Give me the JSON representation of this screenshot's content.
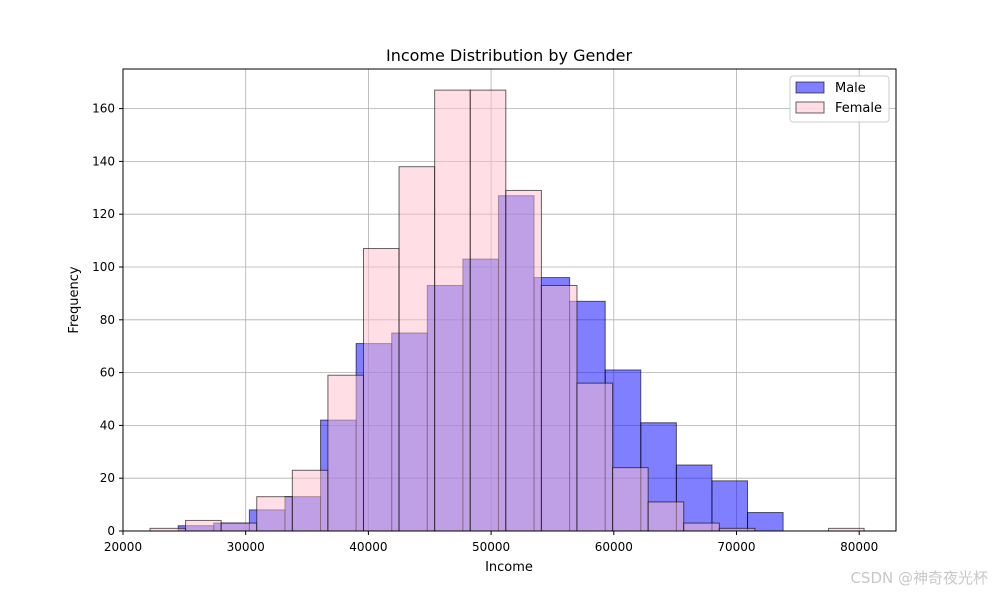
{
  "watermark": "CSDN @神奇夜光杯",
  "chart_data": {
    "type": "bar",
    "subtype": "overlapping-histogram",
    "title": "Income Distribution by Gender",
    "xlabel": "Income",
    "ylabel": "Frequency",
    "xlim": [
      20000,
      83000
    ],
    "ylim": [
      0,
      175
    ],
    "xticks": [
      20000,
      30000,
      40000,
      50000,
      60000,
      70000,
      80000
    ],
    "yticks": [
      0,
      20,
      40,
      60,
      80,
      100,
      120,
      140,
      160
    ],
    "grid": true,
    "legend_position": "top-right",
    "series": [
      {
        "name": "Male",
        "color": "#0000ff",
        "alpha": 0.5,
        "edgecolor": "#000000",
        "bins": [
          [
            24500,
            27400,
            2
          ],
          [
            27400,
            30300,
            3
          ],
          [
            30300,
            33200,
            8
          ],
          [
            33200,
            36100,
            13
          ],
          [
            36100,
            39000,
            42
          ],
          [
            39000,
            41900,
            71
          ],
          [
            41900,
            44800,
            75
          ],
          [
            44800,
            47700,
            93
          ],
          [
            47700,
            50600,
            103
          ],
          [
            50600,
            53500,
            127
          ],
          [
            53500,
            56400,
            96
          ],
          [
            56400,
            59300,
            87
          ],
          [
            59300,
            62200,
            61
          ],
          [
            62200,
            65100,
            41
          ],
          [
            65100,
            68000,
            25
          ],
          [
            68000,
            70900,
            19
          ],
          [
            70900,
            73800,
            7
          ]
        ]
      },
      {
        "name": "Female",
        "color": "#ffc0cb",
        "alpha": 0.5,
        "edgecolor": "#000000",
        "bins": [
          [
            22200,
            25100,
            1
          ],
          [
            25100,
            28000,
            4
          ],
          [
            28000,
            30900,
            3
          ],
          [
            30900,
            33800,
            13
          ],
          [
            33800,
            36700,
            23
          ],
          [
            36700,
            39600,
            59
          ],
          [
            39600,
            42500,
            107
          ],
          [
            42500,
            45400,
            138
          ],
          [
            45400,
            48300,
            167
          ],
          [
            48300,
            51200,
            167
          ],
          [
            51200,
            54100,
            129
          ],
          [
            54100,
            57000,
            93
          ],
          [
            57000,
            59900,
            56
          ],
          [
            59900,
            62800,
            24
          ],
          [
            62800,
            65700,
            11
          ],
          [
            65700,
            68600,
            3
          ],
          [
            68600,
            71500,
            1
          ],
          [
            77500,
            80400,
            1
          ]
        ]
      }
    ]
  }
}
